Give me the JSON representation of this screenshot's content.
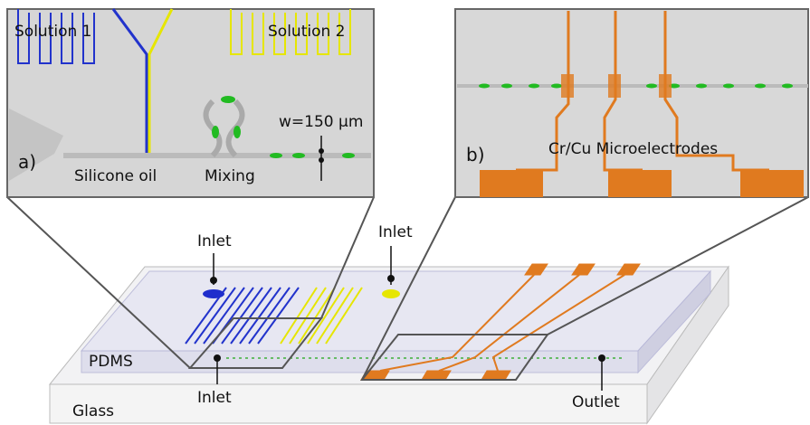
{
  "panel_a": {
    "label": "a)",
    "solution_1": "Solution 1",
    "solution_2": "Solution 2",
    "silicone_oil": "Silicone oil",
    "mixing": "Mixing",
    "width": "w=150 µm"
  },
  "panel_b": {
    "label": "b)",
    "electrodes": "Cr/Cu Microelectrodes"
  },
  "device": {
    "inlets": [
      "Inlet",
      "Inlet",
      "Inlet"
    ],
    "outlet": "Outlet",
    "pdms": "PDMS",
    "glass": "Glass"
  }
}
